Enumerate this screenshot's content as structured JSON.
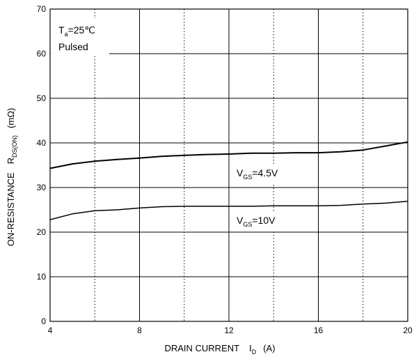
{
  "chart_data": {
    "type": "line",
    "x_axis": {
      "label_main": "DRAIN CURRENT",
      "label_symbol": "I",
      "label_sub": "D",
      "label_unit": "(A)",
      "ticks": [
        "4",
        "8",
        "12",
        "16",
        "20"
      ],
      "range": [
        4,
        20
      ],
      "minor_dotted": [
        6,
        10,
        14,
        18
      ]
    },
    "y_axis": {
      "label_main": "ON-RESISTANCE",
      "label_symbol": "R",
      "label_sub": "DS(ON)",
      "label_unit": "(mΩ)",
      "ticks": [
        "0",
        "10",
        "20",
        "30",
        "40",
        "50",
        "60",
        "70"
      ],
      "range": [
        0,
        70
      ]
    },
    "grid": true,
    "series": [
      {
        "name": "VGS=4.5V",
        "label_symbol": "V",
        "label_sub": "GS",
        "label_value": "=4.5V",
        "x": [
          4,
          5,
          6,
          7,
          8,
          9,
          10,
          11,
          12,
          13,
          14,
          15,
          16,
          17,
          18,
          19,
          20
        ],
        "y": [
          34.3,
          35.3,
          35.9,
          36.3,
          36.6,
          37.0,
          37.2,
          37.4,
          37.5,
          37.7,
          37.7,
          37.8,
          37.8,
          38.0,
          38.4,
          39.3,
          40.2
        ]
      },
      {
        "name": "VGS=10V",
        "label_symbol": "V",
        "label_sub": "GS",
        "label_value": "=10V",
        "x": [
          4,
          5,
          6,
          7,
          8,
          9,
          10,
          11,
          12,
          13,
          14,
          15,
          16,
          17,
          18,
          19,
          20
        ],
        "y": [
          22.8,
          24.1,
          24.8,
          25.0,
          25.4,
          25.7,
          25.8,
          25.8,
          25.8,
          25.8,
          25.9,
          25.9,
          25.9,
          26.0,
          26.3,
          26.5,
          26.9
        ]
      }
    ],
    "conditions": {
      "temp_symbol": "T",
      "temp_sub": "a",
      "temp_value": "=25℃",
      "mode": "Pulsed"
    }
  }
}
